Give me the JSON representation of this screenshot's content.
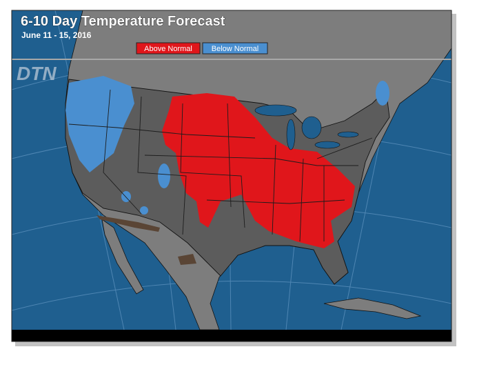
{
  "header": {
    "title": "6-10 Day Temperature Forecast",
    "subtitle": "June 11 - 15, 2016"
  },
  "legend": {
    "items": [
      {
        "name": "Above Normal",
        "color": "#e0161b"
      },
      {
        "name": "Below Normal",
        "color": "#4a8fd0"
      }
    ]
  },
  "logo": "DTN"
}
